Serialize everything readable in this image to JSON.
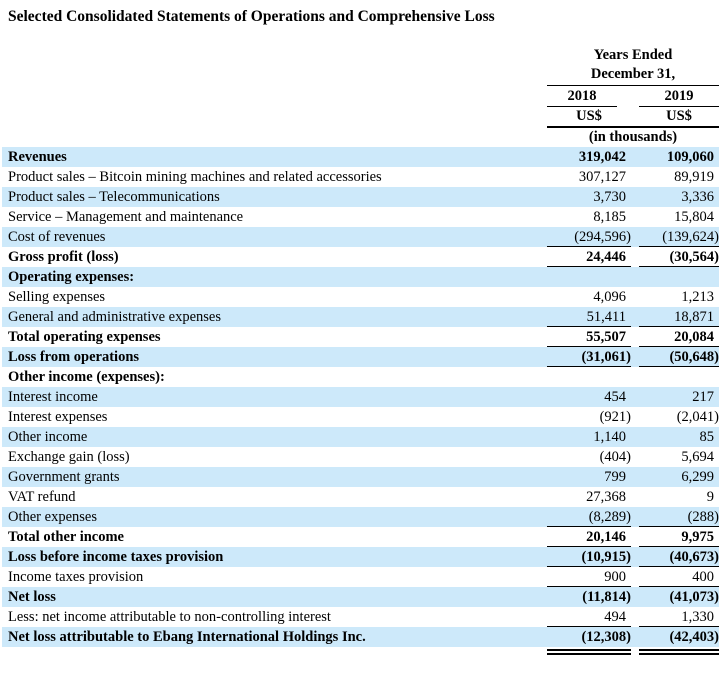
{
  "title": "Selected Consolidated Statements of Operations and Comprehensive Loss",
  "colors": {
    "stripe": "#cde9fa",
    "rule": "#000000",
    "text": "#000000",
    "background": "#ffffff"
  },
  "header": {
    "period_line1": "Years Ended",
    "period_line2": "December 31,",
    "columns": [
      {
        "year": "2018",
        "unit": "US$"
      },
      {
        "year": "2019",
        "unit": "US$"
      }
    ],
    "units_note": "(in thousands)"
  },
  "rows": [
    {
      "label": "Revenues",
      "y2018": "319,042",
      "y2019": "109,060",
      "bold": true,
      "shaded": true,
      "rule": "none"
    },
    {
      "label": "Product sales – Bitcoin mining machines and related accessories",
      "y2018": "307,127",
      "y2019": "89,919",
      "bold": false,
      "shaded": false,
      "rule": "none"
    },
    {
      "label": "Product sales – Telecommunications",
      "y2018": "3,730",
      "y2019": "3,336",
      "bold": false,
      "shaded": true,
      "rule": "none"
    },
    {
      "label": "Service – Management and maintenance",
      "y2018": "8,185",
      "y2019": "15,804",
      "bold": false,
      "shaded": false,
      "rule": "none"
    },
    {
      "label": "Cost of revenues",
      "y2018": "(294,596)",
      "y2019": "(139,624)",
      "bold": false,
      "shaded": true,
      "rule": "single"
    },
    {
      "label": "Gross profit (loss)",
      "y2018": "24,446",
      "y2019": "(30,564)",
      "bold": true,
      "shaded": false,
      "rule": "single"
    },
    {
      "label": "Operating expenses:",
      "y2018": "",
      "y2019": "",
      "bold": true,
      "shaded": true,
      "rule": "none"
    },
    {
      "label": "Selling expenses",
      "y2018": "4,096",
      "y2019": "1,213",
      "bold": false,
      "shaded": false,
      "rule": "none"
    },
    {
      "label": "General and administrative expenses",
      "y2018": "51,411",
      "y2019": "18,871",
      "bold": false,
      "shaded": true,
      "rule": "single"
    },
    {
      "label": "Total operating expenses",
      "y2018": "55,507",
      "y2019": "20,084",
      "bold": true,
      "shaded": false,
      "rule": "single"
    },
    {
      "label": "Loss from operations",
      "y2018": "(31,061)",
      "y2019": "(50,648)",
      "bold": true,
      "shaded": true,
      "rule": "single"
    },
    {
      "label": "Other income (expenses):",
      "y2018": "",
      "y2019": "",
      "bold": true,
      "shaded": false,
      "rule": "none"
    },
    {
      "label": "Interest income",
      "y2018": "454",
      "y2019": "217",
      "bold": false,
      "shaded": true,
      "rule": "none"
    },
    {
      "label": "Interest expenses",
      "y2018": "(921)",
      "y2019": "(2,041)",
      "bold": false,
      "shaded": false,
      "rule": "none"
    },
    {
      "label": "Other income",
      "y2018": "1,140",
      "y2019": "85",
      "bold": false,
      "shaded": true,
      "rule": "none"
    },
    {
      "label": "Exchange gain (loss)",
      "y2018": "(404)",
      "y2019": "5,694",
      "bold": false,
      "shaded": false,
      "rule": "none"
    },
    {
      "label": "Government grants",
      "y2018": "799",
      "y2019": "6,299",
      "bold": false,
      "shaded": true,
      "rule": "none"
    },
    {
      "label": "VAT refund",
      "y2018": "27,368",
      "y2019": "9",
      "bold": false,
      "shaded": false,
      "rule": "none"
    },
    {
      "label": "Other expenses",
      "y2018": "(8,289)",
      "y2019": "(288)",
      "bold": false,
      "shaded": true,
      "rule": "single"
    },
    {
      "label": "Total other income",
      "y2018": "20,146",
      "y2019": "9,975",
      "bold": true,
      "shaded": false,
      "rule": "single"
    },
    {
      "label": "Loss before income taxes provision",
      "y2018": "(10,915)",
      "y2019": "(40,673)",
      "bold": true,
      "shaded": true,
      "rule": "single"
    },
    {
      "label": "Income taxes provision",
      "y2018": "900",
      "y2019": "400",
      "bold": false,
      "shaded": false,
      "rule": "single"
    },
    {
      "label": "Net loss",
      "y2018": "(11,814)",
      "y2019": "(41,073)",
      "bold": true,
      "shaded": true,
      "rule": "none"
    },
    {
      "label": "Less: net income attributable to non-controlling interest",
      "y2018": "494",
      "y2019": "1,330",
      "bold": false,
      "shaded": false,
      "rule": "single"
    },
    {
      "label": "Net loss attributable to Ebang International Holdings Inc.",
      "y2018": "(12,308)",
      "y2019": "(42,403)",
      "bold": true,
      "shaded": true,
      "rule": "double"
    }
  ]
}
